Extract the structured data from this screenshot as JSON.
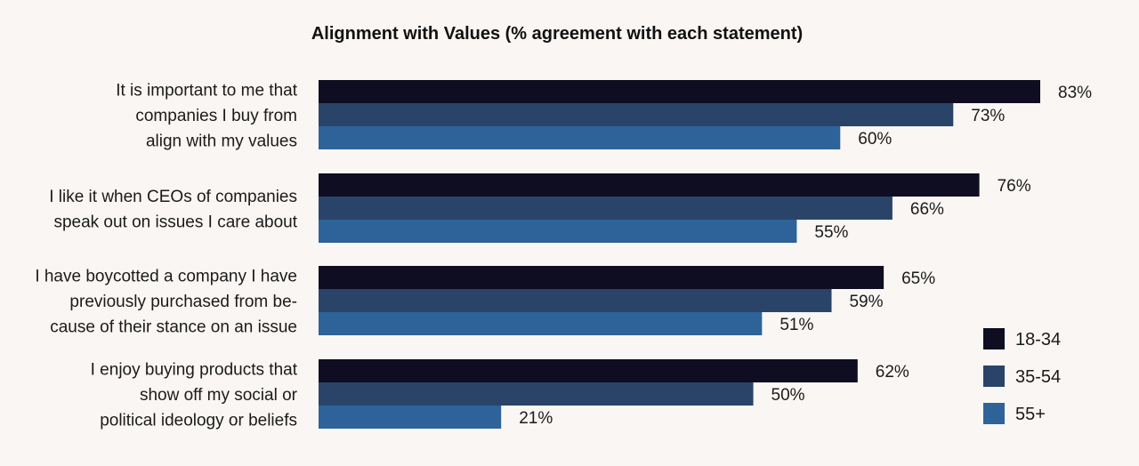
{
  "chart_data": {
    "type": "bar",
    "orientation": "horizontal",
    "title": "Alignment with Values (% agreement with each statement)",
    "categories": [
      [
        "It is important to me that",
        "companies I buy from",
        "align with my values"
      ],
      [
        "I like it when CEOs of companies",
        "speak out on issues I care about"
      ],
      [
        "I have boycotted a company I have",
        "previously purchased from be-",
        "cause of their stance on an issue"
      ],
      [
        "I enjoy buying products that",
        "show off my social or",
        "political ideology or beliefs"
      ]
    ],
    "series": [
      {
        "name": "18-34",
        "color": "#0e0d22",
        "values": [
          83,
          76,
          65,
          62
        ]
      },
      {
        "name": "35-54",
        "color": "#2a4469",
        "values": [
          73,
          66,
          59,
          50
        ]
      },
      {
        "name": "55+",
        "color": "#2e6399",
        "values": [
          60,
          55,
          51,
          21
        ]
      }
    ],
    "value_suffix": "%",
    "xlim": [
      0,
      100
    ],
    "grid": false,
    "legend": "right"
  }
}
